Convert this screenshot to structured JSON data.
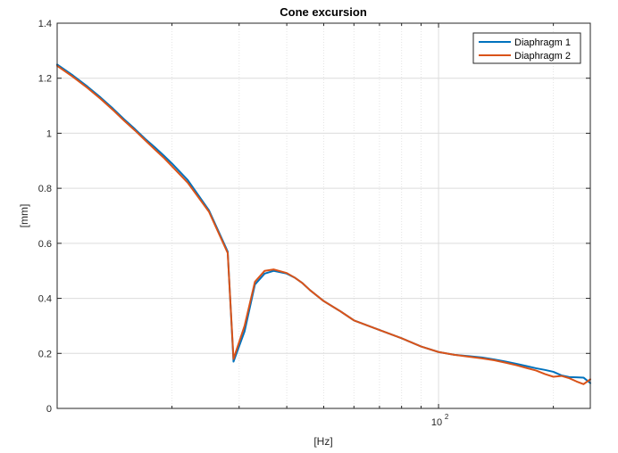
{
  "chart_data": {
    "type": "line",
    "title": "Cone excursion",
    "xlabel": "[Hz]",
    "ylabel": "[mm]",
    "xscale": "log",
    "xlim": [
      10,
      250
    ],
    "ylim": [
      0,
      1.4
    ],
    "grid": true,
    "legend_position": "top-right",
    "x_tick_labels": [
      {
        "value": 100,
        "base": "10",
        "exponent": "2"
      }
    ],
    "y_ticks": [
      0,
      0.2,
      0.4,
      0.6,
      0.8,
      1,
      1.2,
      1.4
    ],
    "y_tick_labels": [
      "0",
      "0.2",
      "0.4",
      "0.6",
      "0.8",
      "1",
      "1.2",
      "1.4"
    ],
    "series": [
      {
        "name": "Diaphragm 1",
        "color": "#0072BD",
        "x": [
          10,
          11,
          12,
          13,
          14,
          15,
          16,
          17,
          18,
          19,
          20,
          22,
          25,
          28,
          29,
          31,
          33,
          35,
          37,
          40,
          42,
          44,
          46,
          50,
          55,
          60,
          70,
          80,
          90,
          100,
          110,
          120,
          130,
          140,
          150,
          160,
          170,
          180,
          190,
          200,
          210,
          220,
          230,
          240,
          250
        ],
        "values": [
          1.25,
          1.21,
          1.17,
          1.13,
          1.09,
          1.05,
          1.015,
          0.98,
          0.95,
          0.92,
          0.89,
          0.83,
          0.72,
          0.57,
          0.17,
          0.28,
          0.45,
          0.49,
          0.5,
          0.49,
          0.475,
          0.455,
          0.43,
          0.39,
          0.355,
          0.32,
          0.285,
          0.255,
          0.225,
          0.205,
          0.195,
          0.19,
          0.185,
          0.178,
          0.17,
          0.162,
          0.154,
          0.146,
          0.14,
          0.133,
          0.12,
          0.114,
          0.113,
          0.112,
          0.092
        ]
      },
      {
        "name": "Diaphragm 2",
        "color": "#D95319",
        "x": [
          10,
          11,
          12,
          13,
          14,
          15,
          16,
          17,
          18,
          19,
          20,
          22,
          25,
          28,
          29,
          31,
          33,
          35,
          37,
          40,
          42,
          44,
          46,
          50,
          55,
          60,
          70,
          80,
          90,
          100,
          110,
          120,
          130,
          140,
          150,
          160,
          170,
          180,
          190,
          200,
          210,
          220,
          230,
          240,
          250
        ],
        "values": [
          1.245,
          1.205,
          1.165,
          1.125,
          1.085,
          1.045,
          1.01,
          0.975,
          0.942,
          0.912,
          0.88,
          0.82,
          0.715,
          0.565,
          0.18,
          0.3,
          0.46,
          0.5,
          0.505,
          0.492,
          0.475,
          0.455,
          0.43,
          0.39,
          0.355,
          0.32,
          0.285,
          0.255,
          0.225,
          0.205,
          0.195,
          0.188,
          0.182,
          0.175,
          0.166,
          0.157,
          0.147,
          0.138,
          0.125,
          0.115,
          0.118,
          0.11,
          0.098,
          0.088,
          0.106
        ]
      }
    ]
  }
}
